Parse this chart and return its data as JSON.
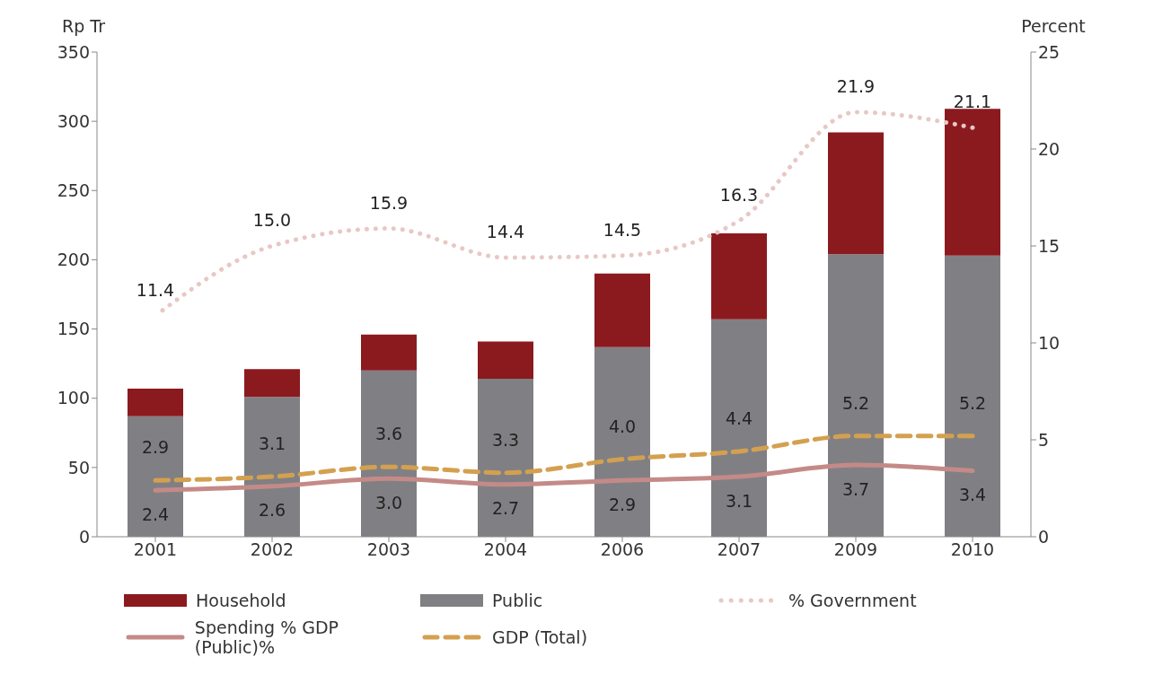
{
  "chart_data": {
    "type": "bar",
    "ylabel": "Rp Tr",
    "y2label": "Percent",
    "categories": [
      "2001",
      "2002",
      "2003",
      "2004",
      "2006",
      "2007",
      "2009",
      "2010"
    ],
    "stacked": true,
    "series": [
      {
        "name": "Public",
        "color": "#808084",
        "values": [
          87,
          101,
          120,
          114,
          137,
          157,
          204,
          203
        ]
      },
      {
        "name": "Household",
        "color": "#8b1a1f",
        "values": [
          20,
          20,
          26,
          27,
          53,
          62,
          88,
          106
        ]
      },
      {
        "name": "% Government",
        "type": "line",
        "axis": "y2",
        "color": "#e8c8c4",
        "line_style": "dotted",
        "values": [
          11.4,
          15.0,
          15.9,
          14.4,
          14.5,
          16.3,
          21.9,
          21.1
        ],
        "value_labels": [
          "11.4",
          "15.0",
          "15.9",
          "14.4",
          "14.5",
          "16.3",
          "21.9",
          "21.1"
        ]
      },
      {
        "name": "Spending % GDP (Public)%",
        "type": "line",
        "axis": "y2",
        "color": "#c48a88",
        "line_style": "solid",
        "values": [
          2.4,
          2.6,
          3.0,
          2.7,
          2.9,
          3.1,
          3.7,
          3.4
        ],
        "value_labels": [
          "2.4",
          "2.6",
          "3.0",
          "2.7",
          "2.9",
          "3.1",
          "3.7",
          "3.4"
        ]
      },
      {
        "name": "GDP (Total)",
        "type": "line",
        "axis": "y2",
        "color": "#d4a050",
        "line_style": "dashed",
        "values": [
          2.9,
          3.1,
          3.6,
          3.3,
          4.0,
          4.4,
          5.2,
          5.2
        ],
        "value_labels": [
          "2.9",
          "3.1",
          "3.6",
          "3.3",
          "4.0",
          "4.4",
          "5.2",
          "5.2"
        ]
      }
    ],
    "ylim": [
      0,
      350
    ],
    "yticks": [
      0,
      50,
      100,
      150,
      200,
      250,
      300,
      350
    ],
    "y2lim": [
      0,
      25
    ],
    "y2ticks": [
      0,
      5,
      10,
      15,
      20,
      25
    ],
    "grid": false,
    "legend": "bottom",
    "marker": "none"
  }
}
